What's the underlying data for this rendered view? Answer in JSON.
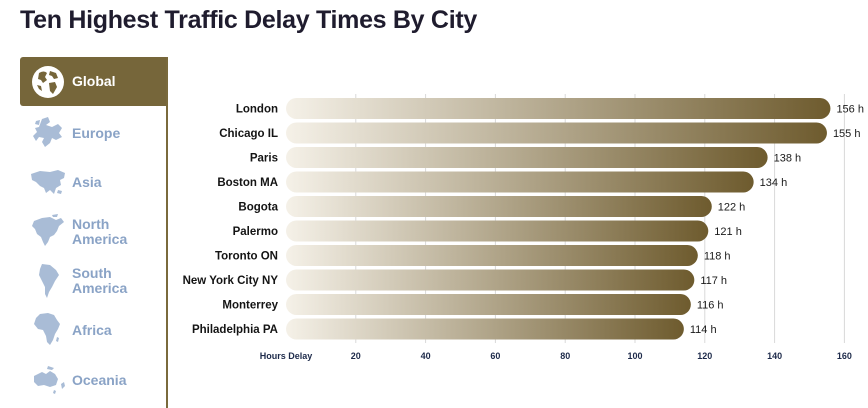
{
  "title": "Ten Highest Traffic Delay Times By City",
  "sidebar": {
    "items": [
      {
        "label": "Global",
        "icon": "globe-icon",
        "active": true
      },
      {
        "label": "Europe",
        "icon": "europe-map-icon",
        "active": false
      },
      {
        "label": "Asia",
        "icon": "asia-map-icon",
        "active": false
      },
      {
        "label": "North America",
        "icon": "north-america-map-icon",
        "active": false
      },
      {
        "label": "South America",
        "icon": "south-america-map-icon",
        "active": false
      },
      {
        "label": "Africa",
        "icon": "africa-map-icon",
        "active": false
      },
      {
        "label": "Oceania",
        "icon": "oceania-map-icon",
        "active": false
      }
    ],
    "active_color": "#76663a",
    "inactive_text_color": "#8aa3c6"
  },
  "chart_data": {
    "type": "bar",
    "orientation": "horizontal",
    "categories": [
      "London",
      "Chicago IL",
      "Paris",
      "Boston MA",
      "Bogota",
      "Palermo",
      "Toronto ON",
      "New York City NY",
      "Monterrey",
      "Philadelphia PA"
    ],
    "values": [
      156,
      155,
      138,
      134,
      122,
      121,
      118,
      117,
      116,
      114
    ],
    "value_labels": [
      "156 h",
      "155 h",
      "138 h",
      "134 h",
      "122 h",
      "121 h",
      "118 h",
      "117 h",
      "116 h",
      "114 h"
    ],
    "xlabel": "Hours Delay",
    "xticks": [
      20,
      40,
      60,
      80,
      100,
      120,
      140,
      160
    ],
    "xlim": [
      0,
      160
    ],
    "grid": true,
    "bar_color_start": "#f5f1e8",
    "bar_color_end": "#6e5b2e"
  }
}
